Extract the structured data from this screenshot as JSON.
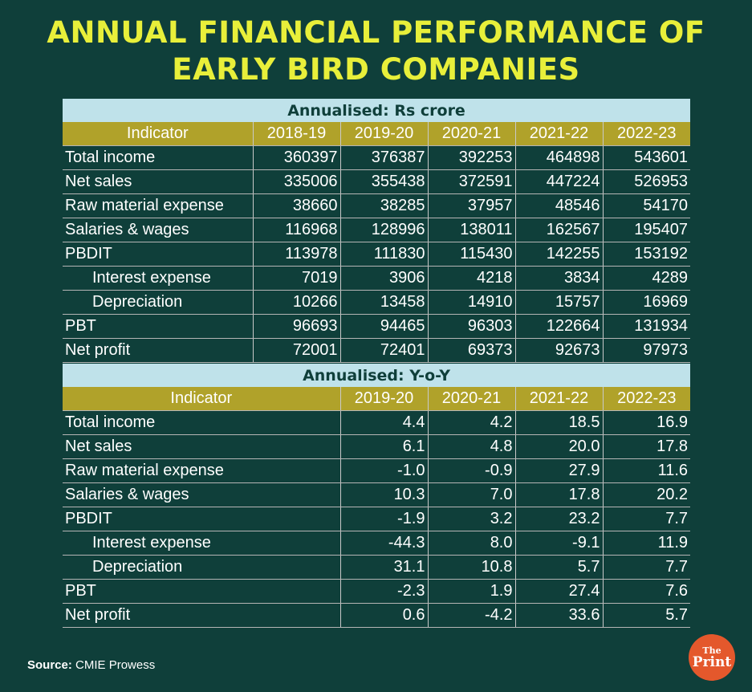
{
  "title": {
    "line1": "ANNUAL FINANCIAL PERFORMANCE OF",
    "line2": "EARLY BIRD COMPANIES"
  },
  "source": {
    "label": "Source:",
    "text": "CMIE Prowess"
  },
  "logo": {
    "the": "The",
    "print": "Print"
  },
  "chart_data": [
    {
      "type": "table",
      "title": "Annualised: Rs crore",
      "header": [
        "Indicator",
        "2018-19",
        "2019-20",
        "2020-21",
        "2021-22",
        "2022-23"
      ],
      "rows": [
        {
          "label": "Total income",
          "sub": false,
          "values": [
            "360397",
            "376387",
            "392253",
            "464898",
            "543601"
          ]
        },
        {
          "label": "Net sales",
          "sub": false,
          "values": [
            "335006",
            "355438",
            "372591",
            "447224",
            "526953"
          ]
        },
        {
          "label": "Raw material expense",
          "sub": false,
          "values": [
            "38660",
            "38285",
            "37957",
            "48546",
            "54170"
          ]
        },
        {
          "label": "Salaries & wages",
          "sub": false,
          "values": [
            "116968",
            "128996",
            "138011",
            "162567",
            "195407"
          ]
        },
        {
          "label": "PBDIT",
          "sub": false,
          "values": [
            "113978",
            "111830",
            "115430",
            "142255",
            "153192"
          ]
        },
        {
          "label": "Interest expense",
          "sub": true,
          "values": [
            "7019",
            "3906",
            "4218",
            "3834",
            "4289"
          ]
        },
        {
          "label": "Depreciation",
          "sub": true,
          "values": [
            "10266",
            "13458",
            "14910",
            "15757",
            "16969"
          ]
        },
        {
          "label": "PBT",
          "sub": false,
          "values": [
            "96693",
            "94465",
            "96303",
            "122664",
            "131934"
          ]
        },
        {
          "label": "Net profit",
          "sub": false,
          "values": [
            "72001",
            "72401",
            "69373",
            "92673",
            "97973"
          ]
        }
      ]
    },
    {
      "type": "table",
      "title": "Annualised: Y-o-Y",
      "header": [
        "Indicator",
        "2019-20",
        "2020-21",
        "2021-22",
        "2022-23"
      ],
      "rows": [
        {
          "label": "Total income",
          "sub": false,
          "values": [
            "4.4",
            "4.2",
            "18.5",
            "16.9"
          ]
        },
        {
          "label": "Net sales",
          "sub": false,
          "values": [
            "6.1",
            "4.8",
            "20.0",
            "17.8"
          ]
        },
        {
          "label": "Raw material expense",
          "sub": false,
          "values": [
            "-1.0",
            "-0.9",
            "27.9",
            "11.6"
          ]
        },
        {
          "label": "Salaries & wages",
          "sub": false,
          "values": [
            "10.3",
            "7.0",
            "17.8",
            "20.2"
          ]
        },
        {
          "label": "PBDIT",
          "sub": false,
          "values": [
            "-1.9",
            "3.2",
            "23.2",
            "7.7"
          ]
        },
        {
          "label": "Interest expense",
          "sub": true,
          "values": [
            "-44.3",
            "8.0",
            "-9.1",
            "11.9"
          ]
        },
        {
          "label": "Depreciation",
          "sub": true,
          "values": [
            "31.1",
            "10.8",
            "5.7",
            "7.7"
          ]
        },
        {
          "label": "PBT",
          "sub": false,
          "values": [
            "-2.3",
            "1.9",
            "27.4",
            "7.6"
          ]
        },
        {
          "label": "Net profit",
          "sub": false,
          "values": [
            "0.6",
            "-4.2",
            "33.6",
            "5.7"
          ]
        }
      ]
    }
  ]
}
